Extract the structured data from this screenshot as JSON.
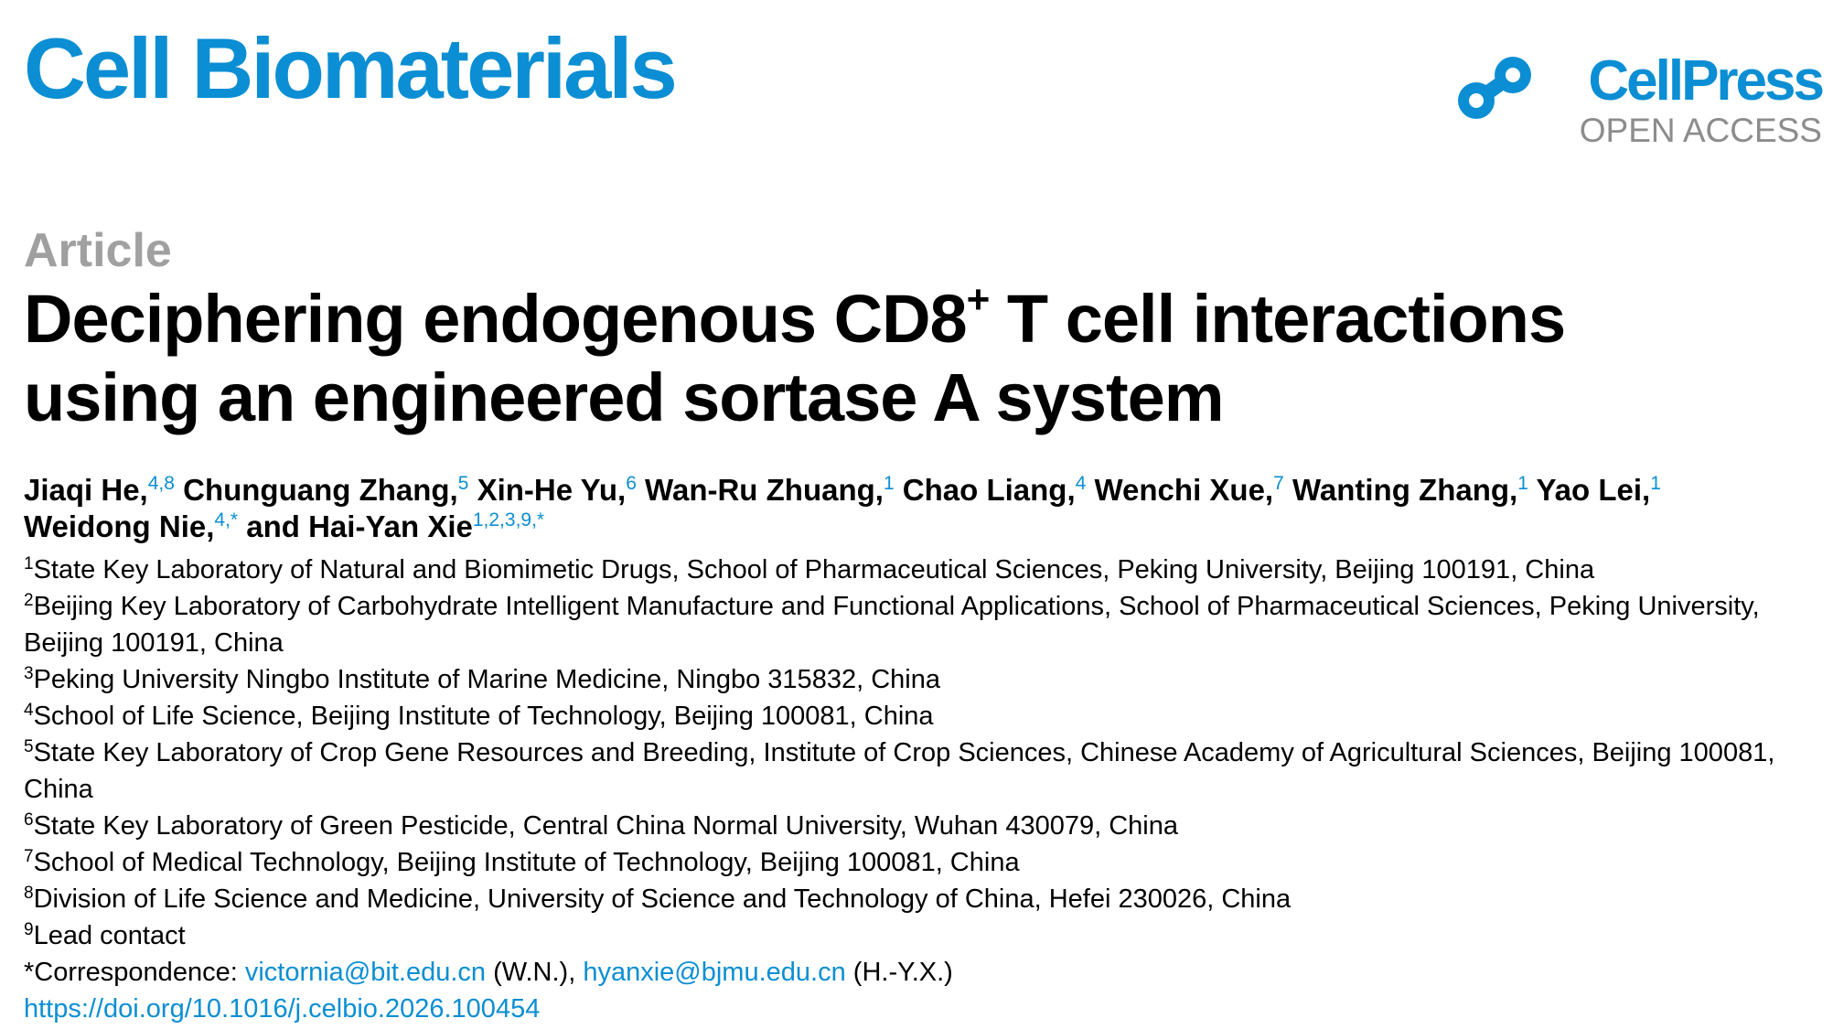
{
  "header": {
    "journal": "Cell Biomaterials",
    "publisher": "CellPress",
    "access": "OPEN ACCESS"
  },
  "article": {
    "type": "Article",
    "title_line1_a": "Deciphering endogenous CD8",
    "title_sup": "+",
    "title_line1_b": " T cell interactions",
    "title_line2": "using an engineered sortase A system"
  },
  "authors": [
    {
      "name": "Jiaqi He,",
      "aff": "4,8"
    },
    {
      "name": "Chunguang Zhang,",
      "aff": "5"
    },
    {
      "name": "Xin-He Yu,",
      "aff": "6"
    },
    {
      "name": "Wan-Ru Zhuang,",
      "aff": "1"
    },
    {
      "name": "Chao Liang,",
      "aff": "4"
    },
    {
      "name": "Wenchi Xue,",
      "aff": "7"
    },
    {
      "name": "Wanting Zhang,",
      "aff": "1"
    },
    {
      "name": "Yao Lei,",
      "aff": "1"
    },
    {
      "name": "Weidong Nie,",
      "aff": "4,*"
    },
    {
      "name": "and Hai-Yan Xie",
      "aff": "1,2,3,9,*"
    }
  ],
  "affiliations": [
    {
      "num": "1",
      "text": "State Key Laboratory of Natural and Biomimetic Drugs, School of Pharmaceutical Sciences, Peking University, Beijing 100191, China"
    },
    {
      "num": "2",
      "text": "Beijing Key Laboratory of Carbohydrate Intelligent Manufacture and Functional Applications, School of Pharmaceutical Sciences, Peking University, Beijing 100191, China"
    },
    {
      "num": "3",
      "text": "Peking University Ningbo Institute of Marine Medicine, Ningbo 315832, China"
    },
    {
      "num": "4",
      "text": "School of Life Science, Beijing Institute of Technology, Beijing 100081, China"
    },
    {
      "num": "5",
      "text": "State Key Laboratory of Crop Gene Resources and Breeding, Institute of Crop Sciences, Chinese Academy of Agricultural Sciences, Beijing 100081, China"
    },
    {
      "num": "6",
      "text": "State Key Laboratory of Green Pesticide, Central China Normal University, Wuhan 430079, China"
    },
    {
      "num": "7",
      "text": "School of Medical Technology, Beijing Institute of Technology, Beijing 100081, China"
    },
    {
      "num": "8",
      "text": "Division of Life Science and Medicine, University of Science and Technology of China, Hefei 230026, China"
    },
    {
      "num": "9",
      "text": "Lead contact"
    }
  ],
  "correspondence": {
    "label": "*Correspondence: ",
    "email1": "victornia@bit.edu.cn",
    "who1": " (W.N.), ",
    "email2": "hyanxie@bjmu.edu.cn",
    "who2": " (H.-Y.X.)"
  },
  "doi": "https://doi.org/10.1016/j.celbio.2026.100454",
  "colors": {
    "brand": "#0b8ed3",
    "muted": "#a0a0a0"
  }
}
